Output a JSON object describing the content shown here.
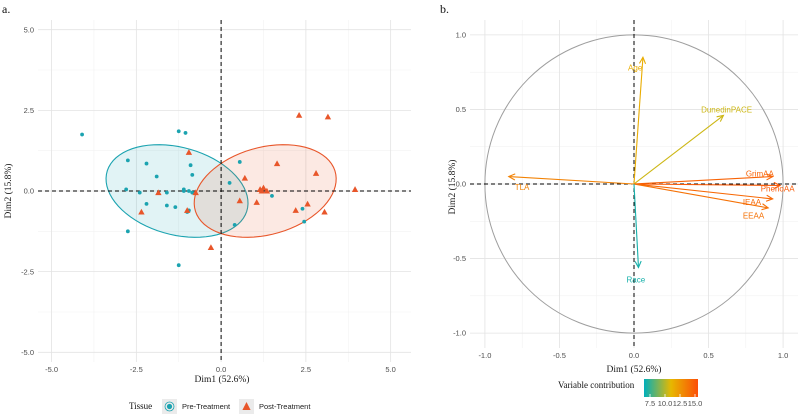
{
  "chart_data": [
    {
      "panel_label": "a.",
      "type": "scatter",
      "xlabel": "Dim1 (52.6%)",
      "ylabel": "Dim2 (15.8%)",
      "xlim": [
        -5.4,
        5.6
      ],
      "ylim": [
        -5.3,
        5.3
      ],
      "xticks": [
        -5.0,
        -2.5,
        0.0,
        2.5,
        5.0
      ],
      "xtick_labels": [
        "-5.0",
        "-2.5",
        "0.0",
        "2.5",
        "5.0"
      ],
      "yticks": [
        -5.0,
        -2.5,
        0.0,
        2.5,
        5.0
      ],
      "ytick_labels": [
        "-5.0",
        "-2.5",
        "0.0",
        "2.5",
        "5.0"
      ],
      "grid": true,
      "legend": {
        "title": "Tissue",
        "placement": "bottom",
        "entries": [
          "Pre-Treatment",
          "Post-Treatment"
        ]
      },
      "series": [
        {
          "name": "Pre-Treatment",
          "marker": "circle",
          "color": "#1ba3b0",
          "x": [
            -4.1,
            -2.75,
            -2.2,
            -1.9,
            -1.25,
            -1.05,
            -2.8,
            -2.4,
            -1.6,
            -1.1,
            -0.95,
            -2.2,
            -1.6,
            -1.35,
            -0.9,
            -0.85,
            -0.95,
            -1.0,
            -1.1,
            -0.85,
            0.25,
            0.55,
            1.5,
            -2.75,
            0.4,
            2.4,
            2.45,
            -1.25
          ],
          "y": [
            1.75,
            0.95,
            0.85,
            0.45,
            1.85,
            1.8,
            0.05,
            -0.05,
            -0.05,
            0.0,
            0.0,
            -0.4,
            -0.45,
            -0.5,
            0.8,
            0.5,
            -0.6,
            -0.65,
            0.05,
            -0.05,
            0.25,
            0.9,
            -0.15,
            -1.25,
            -1.05,
            -0.55,
            -0.95,
            -2.3
          ]
        },
        {
          "name": "Post-Treatment",
          "marker": "triangle",
          "color": "#e8562a",
          "x": [
            2.3,
            3.15,
            1.65,
            2.8,
            3.95,
            1.15,
            1.2,
            1.25,
            1.35,
            -0.95,
            0.7,
            -1.85,
            -2.35,
            2.2,
            2.55,
            3.05,
            -0.75,
            0.55,
            1.05,
            -1.0,
            -0.3
          ],
          "y": [
            2.35,
            2.3,
            0.85,
            0.55,
            0.05,
            0.05,
            0.0,
            0.1,
            0.0,
            1.2,
            0.4,
            -0.05,
            -0.65,
            -0.6,
            -0.4,
            -0.65,
            -0.05,
            -0.3,
            -0.35,
            -0.6,
            -1.75
          ]
        }
      ],
      "ellipses": [
        {
          "name": "Pre-Treatment",
          "center": [
            -1.3,
            0.0
          ],
          "semi_axes": [
            2.15,
            1.35
          ],
          "angle_deg": -17,
          "color": "#1ba3b0"
        },
        {
          "name": "Post-Treatment",
          "center": [
            1.3,
            0.0
          ],
          "semi_axes": [
            2.15,
            1.35
          ],
          "angle_deg": 17,
          "color": "#e8562a"
        }
      ]
    },
    {
      "panel_label": "b.",
      "type": "biplot",
      "xlabel": "Dim1 (52.6%)",
      "ylabel": "Dim2 (15.8%)",
      "xlim": [
        -1.1,
        1.1
      ],
      "ylim": [
        -1.1,
        1.1
      ],
      "xticks": [
        -1.0,
        -0.5,
        0.0,
        0.5,
        1.0
      ],
      "xtick_labels": [
        "-1.0",
        "-0.5",
        "0.0",
        "0.5",
        "1.0"
      ],
      "yticks": [
        -1.0,
        -0.5,
        0.0,
        0.5,
        1.0
      ],
      "ytick_labels": [
        "-1.0",
        "-0.5",
        "0.0",
        "0.5",
        "1.0"
      ],
      "grid": true,
      "unit_circle": true,
      "vectors": [
        {
          "name": "Age",
          "x": 0.06,
          "y": 0.85,
          "contribution": 11.5
        },
        {
          "name": "DunedinPACE",
          "x": 0.6,
          "y": 0.46,
          "contribution": 10.5
        },
        {
          "name": "GrimAA",
          "x": 0.93,
          "y": 0.05,
          "contribution": 14.6
        },
        {
          "name": "PhenoAA",
          "x": 0.98,
          "y": -0.01,
          "contribution": 15.0
        },
        {
          "name": "IEAA",
          "x": 0.93,
          "y": -0.1,
          "contribution": 14.4
        },
        {
          "name": "EEAA",
          "x": 0.9,
          "y": -0.16,
          "contribution": 14.0
        },
        {
          "name": "TLA",
          "x": -0.84,
          "y": 0.05,
          "contribution": 13.3
        },
        {
          "name": "Race",
          "x": 0.03,
          "y": -0.56,
          "contribution": 6.9
        }
      ],
      "labels": [
        {
          "text": "Age",
          "x": -0.04,
          "y": 0.78
        },
        {
          "text": "DunedinPACE",
          "x": 0.45,
          "y": 0.5
        },
        {
          "text": "GrimAA",
          "x": 0.75,
          "y": 0.07
        },
        {
          "text": "PhenoAA",
          "x": 0.85,
          "y": -0.03
        },
        {
          "text": "IEAA",
          "x": 0.73,
          "y": -0.12
        },
        {
          "text": "EEAA",
          "x": 0.73,
          "y": -0.21
        },
        {
          "text": "TLA",
          "x": -0.8,
          "y": -0.02
        },
        {
          "text": "Race",
          "x": -0.05,
          "y": -0.64
        }
      ],
      "colorbar": {
        "title": "Variable contribution",
        "ticks": [
          7.5,
          10.0,
          12.5,
          15.0
        ],
        "tick_labels": [
          "7.5",
          "10.0",
          "12.5",
          "15.0"
        ],
        "range": [
          6.5,
          15.5
        ],
        "colors": [
          "#00afbb",
          "#e7b800",
          "#fc4e07"
        ]
      }
    }
  ]
}
